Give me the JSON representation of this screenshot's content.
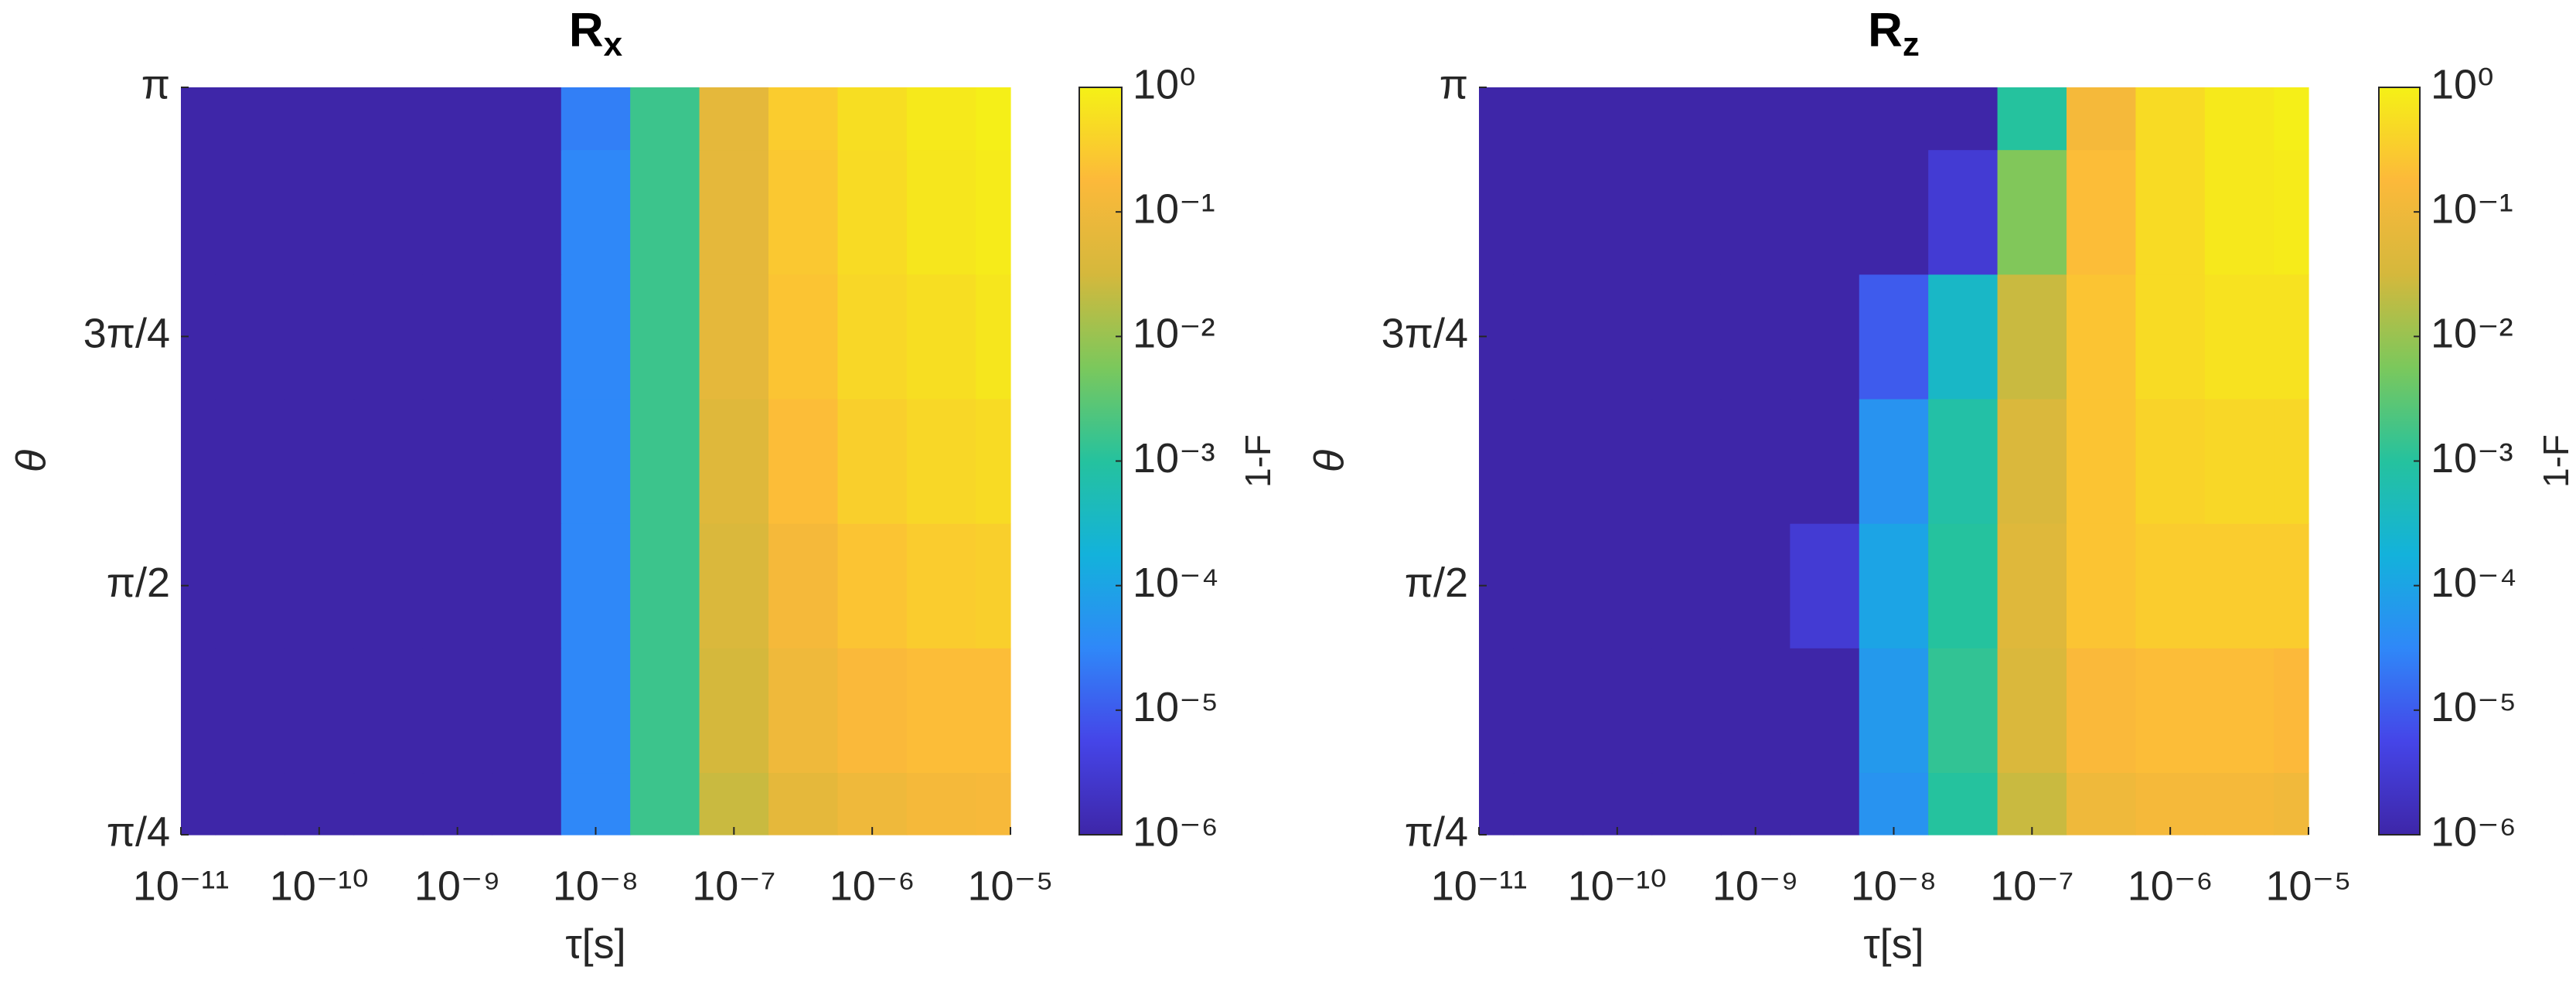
{
  "chart_data": [
    {
      "type": "heatmap",
      "title": "R",
      "title_subscript": "x",
      "xlabel": "τ[s]",
      "ylabel": "θ",
      "xscale": "log",
      "x": [
        1e-11,
        3.16e-11,
        1e-10,
        3.16e-10,
        1e-09,
        3.16e-09,
        1e-08,
        3.16e-08,
        1e-07,
        3.16e-07,
        1e-06,
        3.16e-06,
        1e-05
      ],
      "y": [
        0.785398,
        1.178097,
        1.570796,
        1.963495,
        2.356194,
        2.748894,
        3.141593
      ],
      "values": [
        [
          1e-06,
          1e-06,
          1e-06,
          1e-06,
          1e-06,
          1e-06,
          3.2e-05,
          0.0016,
          0.025,
          0.063,
          0.1,
          0.13,
          0.14
        ],
        [
          1e-06,
          1e-06,
          1e-06,
          1e-06,
          1e-06,
          1e-06,
          3.2e-05,
          0.0016,
          0.032,
          0.1,
          0.16,
          0.2,
          0.2
        ],
        [
          1e-06,
          1e-06,
          1e-06,
          1e-06,
          1e-06,
          1e-06,
          3.2e-05,
          0.0016,
          0.04,
          0.13,
          0.25,
          0.32,
          0.35
        ],
        [
          1e-06,
          1e-06,
          1e-06,
          1e-06,
          1e-06,
          1e-06,
          3.2e-05,
          0.0016,
          0.05,
          0.2,
          0.35,
          0.45,
          0.5
        ],
        [
          1e-06,
          1e-06,
          1e-06,
          1e-06,
          1e-06,
          1e-06,
          3.2e-05,
          0.0016,
          0.063,
          0.25,
          0.45,
          0.56,
          0.71
        ],
        [
          1e-06,
          1e-06,
          1e-06,
          1e-06,
          1e-06,
          1e-06,
          3.2e-05,
          0.0016,
          0.063,
          0.28,
          0.5,
          0.71,
          0.83
        ],
        [
          1e-06,
          1e-06,
          1e-06,
          1e-06,
          1e-06,
          1e-06,
          2.5e-05,
          0.0016,
          0.063,
          0.32,
          0.56,
          0.79,
          0.93
        ]
      ],
      "xlim": [
        1e-11,
        1e-05
      ],
      "xticks": [
        {
          "value": 1e-11,
          "label": "10⁻¹¹"
        },
        {
          "value": 1e-10,
          "label": "10⁻¹⁰"
        },
        {
          "value": 1e-09,
          "label": "10⁻⁹"
        },
        {
          "value": 1e-08,
          "label": "10⁻⁸"
        },
        {
          "value": 1e-07,
          "label": "10⁻⁷"
        },
        {
          "value": 1e-06,
          "label": "10⁻⁶"
        },
        {
          "value": 1e-05,
          "label": "10⁻⁵"
        }
      ],
      "ylim": [
        0.785398,
        3.141593
      ],
      "yticks": [
        {
          "value": 0.785398,
          "label": "π/4"
        },
        {
          "value": 1.570796,
          "label": "π/2"
        },
        {
          "value": 2.356194,
          "label": "3π/4"
        },
        {
          "value": 3.141593,
          "label": "π"
        }
      ],
      "colorbar": {
        "label": "1-F",
        "scale": "log",
        "lim": [
          1e-06,
          1
        ],
        "ticks": [
          {
            "value": 1,
            "label": "10⁰"
          },
          {
            "value": 0.1,
            "label": "10⁻¹"
          },
          {
            "value": 0.01,
            "label": "10⁻²"
          },
          {
            "value": 0.001,
            "label": "10⁻³"
          },
          {
            "value": 0.0001,
            "label": "10⁻⁴"
          },
          {
            "value": 1e-05,
            "label": "10⁻⁵"
          },
          {
            "value": 1e-06,
            "label": "10⁻⁶"
          }
        ]
      },
      "colormap": [
        "#3e26a8",
        "#4545e8",
        "#2f88f8",
        "#13b2db",
        "#25c29e",
        "#7bc85c",
        "#d5b83c",
        "#fcb93a",
        "#f5f116"
      ]
    },
    {
      "type": "heatmap",
      "title": "R",
      "title_subscript": "z",
      "xlabel": "τ[s]",
      "ylabel": "θ",
      "xscale": "log",
      "x": [
        1e-11,
        3.16e-11,
        1e-10,
        3.16e-10,
        1e-09,
        3.16e-09,
        1e-08,
        3.16e-08,
        1e-07,
        3.16e-07,
        1e-06,
        3.16e-06,
        1e-05
      ],
      "y": [
        0.785398,
        1.178097,
        1.570796,
        1.963495,
        2.356194,
        2.748894,
        3.141593
      ],
      "values": [
        [
          1e-06,
          1e-06,
          1e-06,
          1e-06,
          1e-06,
          1e-06,
          5e-05,
          0.001,
          0.025,
          0.1,
          0.13,
          0.13,
          0.11
        ],
        [
          1e-06,
          1e-06,
          1e-06,
          1e-06,
          1e-06,
          1e-06,
          6.3e-05,
          0.0013,
          0.04,
          0.16,
          0.2,
          0.2,
          0.18
        ],
        [
          1e-06,
          1e-06,
          1e-06,
          1e-06,
          1e-06,
          3.2e-06,
          0.0001,
          0.001,
          0.05,
          0.25,
          0.32,
          0.32,
          0.32
        ],
        [
          1e-06,
          1e-06,
          1e-06,
          1e-06,
          1e-06,
          1e-06,
          5e-05,
          0.0008,
          0.04,
          0.25,
          0.4,
          0.45,
          0.45
        ],
        [
          1e-06,
          1e-06,
          1e-06,
          1e-06,
          1e-06,
          1e-06,
          1e-05,
          0.00032,
          0.025,
          0.25,
          0.5,
          0.63,
          0.63
        ],
        [
          1e-06,
          1e-06,
          1e-06,
          1e-06,
          1e-06,
          1e-06,
          1e-06,
          3.2e-06,
          0.0063,
          0.2,
          0.5,
          0.76,
          0.83
        ],
        [
          1e-06,
          1e-06,
          1e-06,
          1e-06,
          1e-06,
          1e-06,
          1e-06,
          1e-06,
          0.001,
          0.13,
          0.5,
          0.79,
          0.93
        ]
      ],
      "xlim": [
        1e-11,
        1e-05
      ],
      "xticks": [
        {
          "value": 1e-11,
          "label": "10⁻¹¹"
        },
        {
          "value": 1e-10,
          "label": "10⁻¹⁰"
        },
        {
          "value": 1e-09,
          "label": "10⁻⁹"
        },
        {
          "value": 1e-08,
          "label": "10⁻⁸"
        },
        {
          "value": 1e-07,
          "label": "10⁻⁷"
        },
        {
          "value": 1e-06,
          "label": "10⁻⁶"
        },
        {
          "value": 1e-05,
          "label": "10⁻⁵"
        }
      ],
      "ylim": [
        0.785398,
        3.141593
      ],
      "yticks": [
        {
          "value": 0.785398,
          "label": "π/4"
        },
        {
          "value": 1.570796,
          "label": "π/2"
        },
        {
          "value": 2.356194,
          "label": "3π/4"
        },
        {
          "value": 3.141593,
          "label": "π"
        }
      ],
      "colorbar": {
        "label": "1-F",
        "scale": "log",
        "lim": [
          1e-06,
          1
        ],
        "ticks": [
          {
            "value": 1,
            "label": "10⁰"
          },
          {
            "value": 0.1,
            "label": "10⁻¹"
          },
          {
            "value": 0.01,
            "label": "10⁻²"
          },
          {
            "value": 0.001,
            "label": "10⁻³"
          },
          {
            "value": 0.0001,
            "label": "10⁻⁴"
          },
          {
            "value": 1e-05,
            "label": "10⁻⁵"
          },
          {
            "value": 1e-06,
            "label": "10⁻⁶"
          }
        ]
      },
      "colormap": [
        "#3e26a8",
        "#4545e8",
        "#2f88f8",
        "#13b2db",
        "#25c29e",
        "#7bc85c",
        "#d5b83c",
        "#fcb93a",
        "#f5f116"
      ]
    }
  ]
}
